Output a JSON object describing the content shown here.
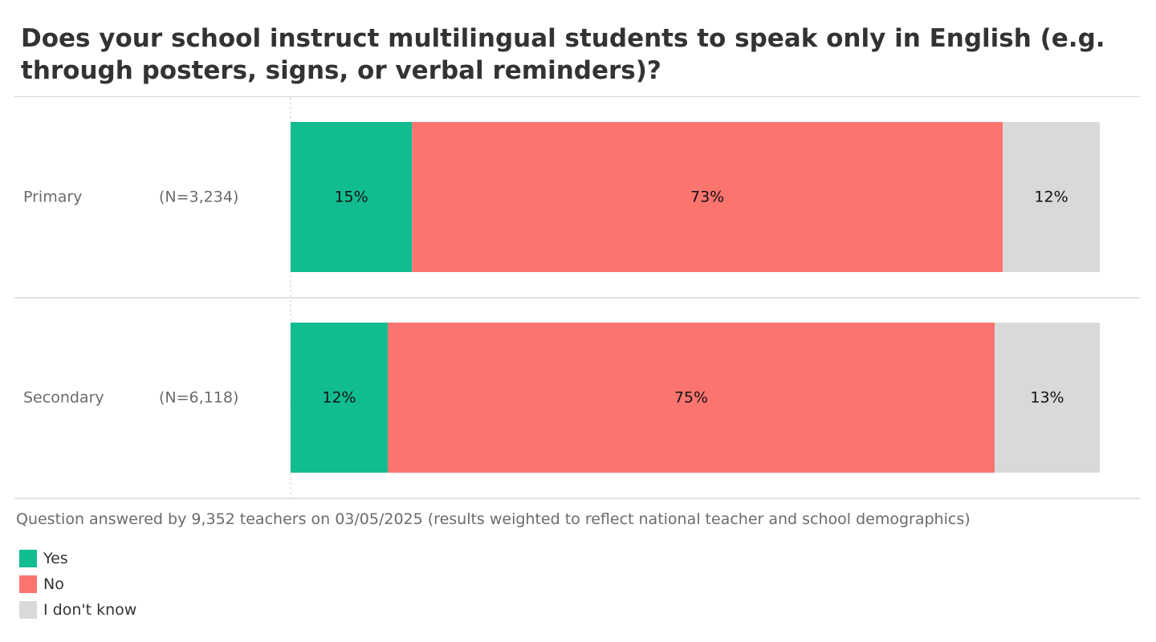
{
  "chart_data": {
    "type": "bar",
    "orientation": "horizontal",
    "stacked": true,
    "title": "Does your school instruct multilingual students to speak only in English (e.g. through posters, signs, or verbal reminders)?",
    "categories": [
      {
        "label": "Primary",
        "n": "(N=3,234)"
      },
      {
        "label": "Secondary",
        "n": "(N=6,118)"
      }
    ],
    "series": [
      {
        "name": "Yes",
        "color": "#12bc91",
        "values": [
          15,
          12
        ],
        "labels": [
          "15%",
          "12%"
        ]
      },
      {
        "name": "No",
        "color": "#fc746e",
        "values": [
          73,
          75
        ],
        "labels": [
          "73%",
          "75%"
        ]
      },
      {
        "name": "I don't know",
        "color": "#d9d9d9",
        "values": [
          12,
          13
        ],
        "labels": [
          "12%",
          "13%"
        ]
      }
    ],
    "xlim": [
      0,
      100
    ],
    "legend_position": "bottom-left",
    "footnote": "Question answered by 9,352 teachers on 03/05/2025 (results weighted to reflect national teacher and school demographics)"
  }
}
